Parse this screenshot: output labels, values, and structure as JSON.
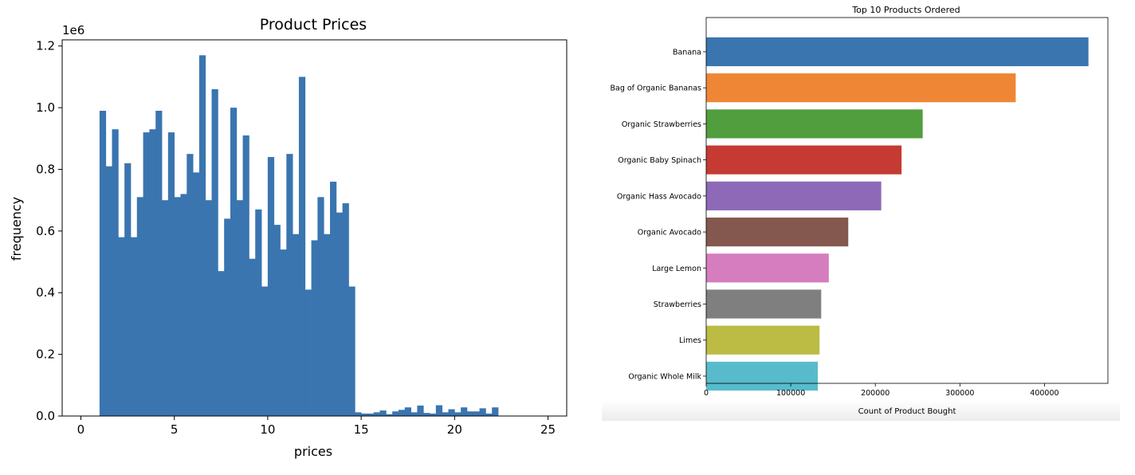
{
  "chart_data": [
    {
      "type": "bar",
      "subtype": "histogram",
      "title": "Product Prices",
      "xlabel": "prices",
      "ylabel": "frequency",
      "offset_label": "1e6",
      "xlim": [
        -1,
        26
      ],
      "ylim": [
        0,
        1.22
      ],
      "xticks": [
        0,
        5,
        10,
        15,
        20,
        25
      ],
      "xtick_labels": [
        "0",
        "5",
        "10",
        "15",
        "20",
        "25"
      ],
      "yticks": [
        0.0,
        0.2,
        0.4,
        0.6,
        0.8,
        1.0,
        1.2
      ],
      "ytick_labels": [
        "0.0",
        "0.2",
        "0.4",
        "0.6",
        "0.8",
        "1.0",
        "1.2"
      ],
      "bin_start": 1.0,
      "bin_width": 0.3333,
      "values": [
        0.99,
        0.81,
        0.93,
        0.58,
        0.82,
        0.58,
        0.71,
        0.92,
        0.93,
        0.99,
        0.7,
        0.92,
        0.71,
        0.72,
        0.85,
        0.79,
        1.17,
        0.7,
        1.06,
        0.47,
        0.64,
        1.0,
        0.7,
        0.91,
        0.51,
        0.67,
        0.42,
        0.84,
        0.62,
        0.54,
        0.85,
        0.59,
        1.1,
        0.41,
        0.57,
        0.71,
        0.59,
        0.76,
        0.66,
        0.69,
        0.42,
        0.012,
        0.008,
        0.008,
        0.012,
        0.018,
        0.006,
        0.015,
        0.02,
        0.028,
        0.012,
        0.034,
        0.01,
        0.008,
        0.035,
        0.012,
        0.022,
        0.012,
        0.028,
        0.015,
        0.015,
        0.025,
        0.008,
        0.028
      ],
      "color": "#3a75b0",
      "grid": false
    },
    {
      "type": "bar",
      "orientation": "horizontal",
      "title": "Top 10 Products Ordered",
      "xlabel": "Count of Product Bought",
      "ylabel": "",
      "xlim": [
        0,
        475000
      ],
      "xticks": [
        0,
        100000,
        200000,
        300000,
        400000
      ],
      "xtick_labels": [
        "0",
        "100000",
        "200000",
        "300000",
        "400000"
      ],
      "categories": [
        "Banana",
        "Bag of Organic Bananas",
        "Organic Strawberries",
        "Organic Baby Spinach",
        "Organic Hass Avocado",
        "Organic Avocado",
        "Large Lemon",
        "Strawberries",
        "Limes",
        "Organic Whole Milk"
      ],
      "values": [
        452000,
        366000,
        256000,
        231000,
        207000,
        168000,
        145000,
        136000,
        134000,
        132000
      ],
      "colors": [
        "#3a75b0",
        "#ef8636",
        "#519e3e",
        "#c53a32",
        "#8d69b8",
        "#84584e",
        "#d57dbf",
        "#7f7f7f",
        "#bcbc45",
        "#58bbcc"
      ],
      "grid": false
    }
  ]
}
